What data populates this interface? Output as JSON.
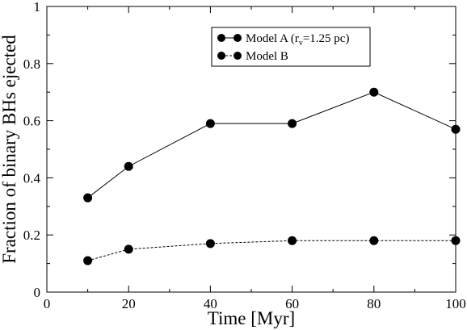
{
  "chart_data": {
    "type": "line",
    "xlabel": "Time [Myr]",
    "ylabel": "Fraction of binary BHs ejected",
    "xlim": [
      0,
      100
    ],
    "ylim": [
      0,
      1
    ],
    "x_ticks": [
      "0",
      "20",
      "40",
      "60",
      "80",
      "100"
    ],
    "y_ticks": [
      "0",
      "0.2",
      "0.4",
      "0.6",
      "0.8",
      "1"
    ],
    "grid": false,
    "legend_position": "top-right",
    "series": [
      {
        "name": "Model A (r",
        "name_sub": "v",
        "name_suffix": "=1.25 pc)",
        "line_style": "solid",
        "color": "#000000",
        "x": [
          10,
          20,
          40,
          60,
          80,
          100
        ],
        "values": [
          0.33,
          0.44,
          0.59,
          0.59,
          0.7,
          0.57
        ]
      },
      {
        "name": "Model B",
        "line_style": "dashed",
        "color": "#000000",
        "x": [
          10,
          20,
          40,
          60,
          80,
          100
        ],
        "values": [
          0.11,
          0.15,
          0.17,
          0.18,
          0.18,
          0.18
        ]
      }
    ]
  }
}
